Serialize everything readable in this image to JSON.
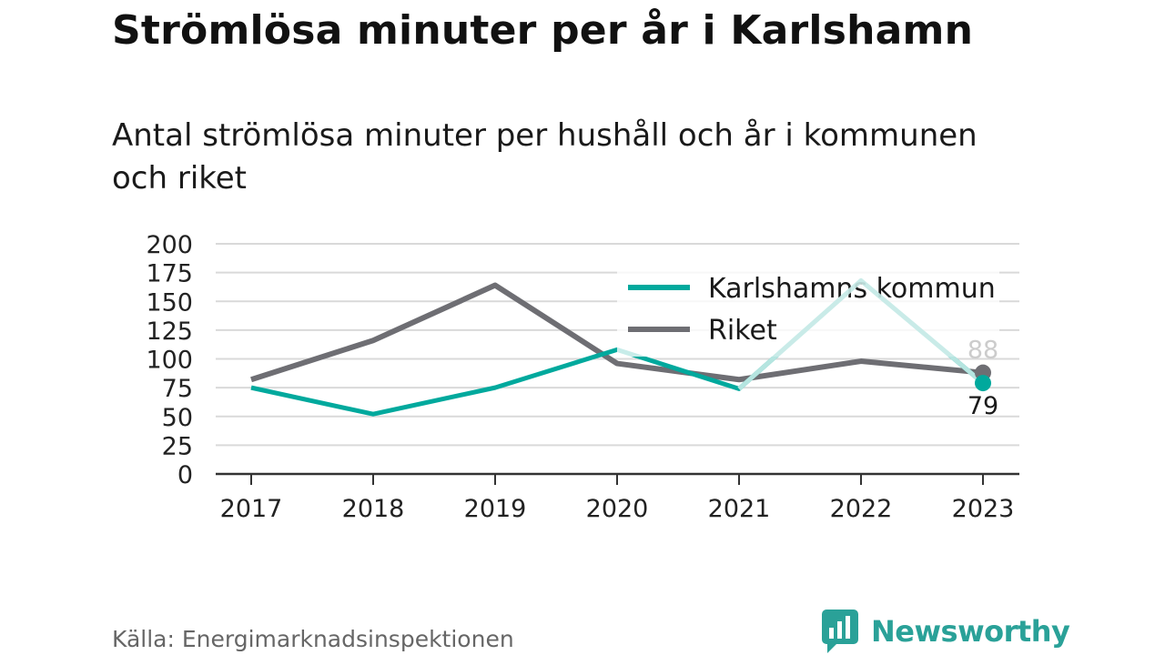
{
  "title": "Strömlösa minuter per år i Karlshamn",
  "subtitle": "Antal strömlösa minuter per hushåll och år i kommunen och riket",
  "source": "Källa: Energimarknadsinspektionen",
  "brand": "Newsworthy",
  "colors": {
    "karlshamn": "#00a99d",
    "karlshamn_faded": "#c9ebe8",
    "riket": "#6e6e73",
    "grid": "#d9d9d9",
    "axis": "#333333",
    "brand": "#2aa198"
  },
  "chart_data": {
    "type": "line",
    "x": [
      "2017",
      "2018",
      "2019",
      "2020",
      "2021",
      "2022",
      "2023"
    ],
    "ylim": [
      0,
      200
    ],
    "yticks": [
      "0",
      "25",
      "50",
      "75",
      "100",
      "125",
      "150",
      "175",
      "200"
    ],
    "grid": true,
    "legend_position": "top-right",
    "series": [
      {
        "name": "Karlshamns kommun",
        "values": [
          75,
          52,
          75,
          108,
          74,
          168,
          79
        ]
      },
      {
        "name": "Riket",
        "values": [
          82,
          116,
          164,
          96,
          82,
          98,
          88
        ]
      }
    ],
    "end_labels": {
      "Karlshamns kommun": "79",
      "Riket": "88"
    }
  }
}
